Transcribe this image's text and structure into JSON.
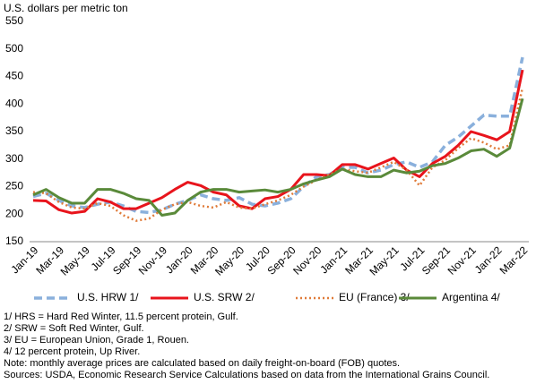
{
  "chart_data": {
    "type": "line",
    "ylabel": "U.S. dollars per metric ton",
    "categories": [
      "Jan-19",
      null,
      "Mar-19",
      null,
      "May-19",
      null,
      "Jul-19",
      null,
      "Sep-19",
      null,
      "Nov-19",
      null,
      "Jan-20",
      null,
      "Mar-20",
      null,
      "May-20",
      null,
      "Jul-20",
      null,
      "Sep-20",
      null,
      "Nov-20",
      null,
      "Jan-21",
      null,
      "Mar-21",
      null,
      "May-21",
      null,
      "Jul-21",
      null,
      "Sep-21",
      null,
      "Nov-21",
      null,
      "Jan-22",
      null,
      "Mar-22"
    ],
    "series": [
      {
        "name": "U.S. HRW 1/",
        "color": "#8ab0dc",
        "style": "dashed",
        "values": [
          232,
          238,
          225,
          215,
          212,
          218,
          222,
          215,
          205,
          203,
          208,
          218,
          225,
          235,
          228,
          225,
          230,
          218,
          215,
          220,
          228,
          250,
          268,
          272,
          285,
          285,
          275,
          280,
          290,
          295,
          285,
          295,
          325,
          340,
          360,
          380,
          378,
          378,
          485
        ]
      },
      {
        "name": "U.S. SRW 2/",
        "color": "#e8141c",
        "style": "solid",
        "values": [
          225,
          224,
          208,
          202,
          205,
          228,
          222,
          210,
          210,
          220,
          230,
          245,
          258,
          252,
          240,
          235,
          215,
          210,
          228,
          232,
          245,
          272,
          272,
          270,
          290,
          290,
          282,
          292,
          302,
          280,
          268,
          292,
          305,
          325,
          350,
          343,
          335,
          350,
          462
        ]
      },
      {
        "name": "EU (France) 3/",
        "color": "#e07b39",
        "style": "dotted",
        "values": [
          240,
          238,
          222,
          212,
          210,
          220,
          215,
          198,
          188,
          192,
          208,
          218,
          222,
          215,
          212,
          222,
          212,
          210,
          218,
          225,
          235,
          250,
          262,
          272,
          282,
          278,
          275,
          285,
          295,
          280,
          252,
          285,
          298,
          320,
          338,
          330,
          318,
          325,
          430
        ]
      },
      {
        "name": "Argentina 4/",
        "color": "#5a8a3a",
        "style": "solid",
        "values": [
          235,
          245,
          230,
          220,
          220,
          245,
          245,
          238,
          228,
          225,
          198,
          202,
          225,
          240,
          245,
          245,
          240,
          242,
          244,
          240,
          245,
          255,
          262,
          268,
          282,
          272,
          268,
          268,
          280,
          275,
          278,
          288,
          292,
          302,
          315,
          318,
          305,
          320,
          410
        ]
      }
    ],
    "ylim": [
      150,
      550
    ],
    "yticks": [
      150,
      200,
      250,
      300,
      350,
      400,
      450,
      500,
      550
    ],
    "grid": false,
    "legend": "bottom",
    "notes": [
      "1/ HRS = Hard Red Winter, 11.5 percent protein, Gulf.",
      "2/ SRW = Soft Red Winter, Gulf.",
      "3/ EU = European Union, Grade 1, Rouen.",
      "4/ 12 percent protein, Up River.",
      "Note: monthly average prices are calculated based on daily freight-on-board (FOB) quotes.",
      "Sources: USDA, Economic Research Service Calculations based on data from the International Grains Council."
    ]
  }
}
